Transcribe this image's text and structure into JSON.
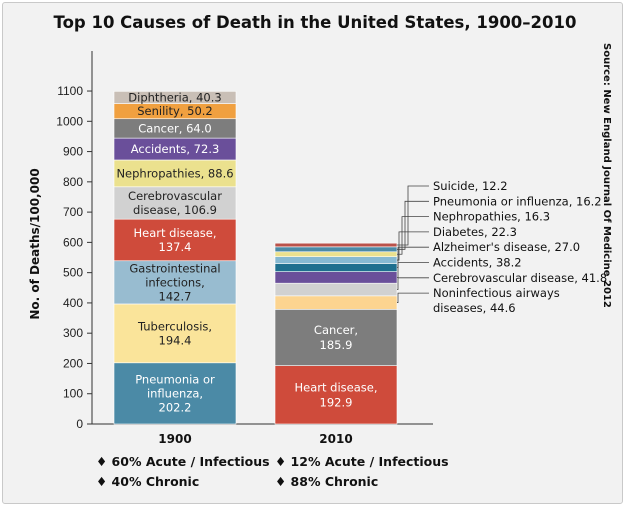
{
  "chart_data": {
    "type": "bar",
    "stacked": true,
    "title": "Top 10 Causes of Death in the United States, 1900–2010",
    "ylabel": "No. of Deaths/100,000",
    "xlabel": "",
    "ylim": [
      0,
      1100
    ],
    "yticks": [
      "0",
      "100",
      "200",
      "300",
      "400",
      "500",
      "600",
      "700",
      "800",
      "900",
      "1000",
      "1100"
    ],
    "grid": false,
    "source": "Source: New England Journal Of Medicine 2012",
    "bars": [
      {
        "category": "1900",
        "segments": [
          {
            "label": "Pneumonia or influenza, 202.2",
            "value": 202.2,
            "color": "#4b8aa6",
            "text_color": "#ffffff"
          },
          {
            "label": "Tuberculosis, 194.4",
            "value": 194.4,
            "color": "#fae49a",
            "text_color": "#222222"
          },
          {
            "label": "Gastrointestinal infections, 142.7",
            "value": 142.7,
            "color": "#98bcd0",
            "text_color": "#222222"
          },
          {
            "label": "Heart disease, 137.4",
            "value": 137.4,
            "color": "#cf4b3b",
            "text_color": "#ffffff"
          },
          {
            "label": "Cerebrovascular disease, 106.9",
            "value": 106.9,
            "color": "#d1d1d1",
            "text_color": "#222222"
          },
          {
            "label": "Nephropathies, 88.6",
            "value": 88.6,
            "color": "#ebe18e",
            "text_color": "#222222"
          },
          {
            "label": "Accidents, 72.3",
            "value": 72.3,
            "color": "#6a4f9a",
            "text_color": "#ffffff"
          },
          {
            "label": "Cancer, 64.0",
            "value": 64.0,
            "color": "#7d7d7d",
            "text_color": "#ffffff"
          },
          {
            "label": "Senility, 50.2",
            "value": 50.2,
            "color": "#f0a040",
            "text_color": "#222222"
          },
          {
            "label": "Diphtheria, 40.3",
            "value": 40.3,
            "color": "#c9bfb6",
            "text_color": "#222222"
          }
        ]
      },
      {
        "category": "2010",
        "segments": [
          {
            "label": "Heart disease, 192.9",
            "value": 192.9,
            "color": "#cf4b3b",
            "text_color": "#ffffff"
          },
          {
            "label": "Cancer, 185.9",
            "value": 185.9,
            "color": "#7d7d7d",
            "text_color": "#ffffff"
          },
          {
            "label": "Noninfectious airways diseases, 44.6",
            "value": 44.6,
            "color": "#fcd490",
            "text_color": "#222222"
          },
          {
            "label": "Cerebrovascular disease, 41.8",
            "value": 41.8,
            "color": "#d1d1d1",
            "text_color": "#222222"
          },
          {
            "label": "Accidents, 38.2",
            "value": 38.2,
            "color": "#6a4f9a",
            "text_color": "#ffffff"
          },
          {
            "label": "Alzheimer's disease, 27.0",
            "value": 27.0,
            "color": "#1e6f8e",
            "text_color": "#ffffff"
          },
          {
            "label": "Diabetes, 22.3",
            "value": 22.3,
            "color": "#86b9d2",
            "text_color": "#222222"
          },
          {
            "label": "Nephropathies, 16.3",
            "value": 16.3,
            "color": "#ebe18e",
            "text_color": "#222222"
          },
          {
            "label": "Pneumonia or influenza, 16.2",
            "value": 16.2,
            "color": "#4b8aa6",
            "text_color": "#ffffff"
          },
          {
            "label": "Suicide, 12.2",
            "value": 12.2,
            "color": "#b9524a",
            "text_color": "#ffffff"
          }
        ]
      }
    ],
    "notes": [
      [
        "♦ 60% Acute / Infectious",
        "♦ 40% Chronic"
      ],
      [
        "♦ 12% Acute / Infectious",
        "♦ 88% Chronic"
      ]
    ]
  }
}
